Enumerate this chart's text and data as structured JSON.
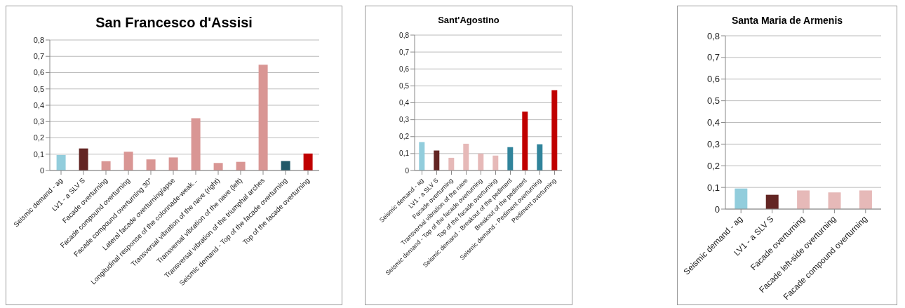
{
  "chart_data": [
    {
      "type": "bar",
      "title": "San Francesco d'Assisi",
      "categories": [
        "Seismic demand - ag",
        "LV1 - a SLV S",
        "Facade overturning",
        "Facade compound overturning",
        "Facade compound overturning 30°",
        "Lateral facade overturning/apse",
        "Longitudinal response of the colonnade-weak...",
        "Transversal vibration of the nave (right)",
        "Transversal vibration of the nave (left)",
        "Transversal vibration of the triumphal arches",
        "Seismic demand - Top of the facade overturning",
        "Top of the facade overturning"
      ],
      "values": [
        0.095,
        0.135,
        0.057,
        0.115,
        0.068,
        0.08,
        0.32,
        0.046,
        0.053,
        0.648,
        0.058,
        0.104
      ],
      "colors": [
        "#92cddc",
        "#632523",
        "#d99694",
        "#d99694",
        "#d99694",
        "#d99694",
        "#d99694",
        "#d99694",
        "#d99694",
        "#d99694",
        "#215968",
        "#c00000"
      ],
      "ylim": [
        0,
        0.8
      ],
      "yticks": [
        {
          "value": 0,
          "label": "0"
        },
        {
          "value": 0.1,
          "label": "0,1"
        },
        {
          "value": 0.2,
          "label": "0,2"
        },
        {
          "value": 0.3,
          "label": "0,3"
        },
        {
          "value": 0.4,
          "label": "0,4"
        },
        {
          "value": 0.5,
          "label": "0,5"
        },
        {
          "value": 0.6,
          "label": "0,6"
        },
        {
          "value": 0.7,
          "label": "0,7"
        },
        {
          "value": 0.8,
          "label": "0,8"
        }
      ],
      "grid": "y",
      "legend": false
    },
    {
      "type": "bar",
      "title": "Sant'Agostino",
      "categories": [
        "Seismic demand - ag",
        "LV1 - a SLV S",
        "Facade overturning",
        "Transversal vibration of the nave",
        "Seismic demand - Top of the facade overturning",
        "Top of the facade overturning",
        "Seismic demand - Breakout of the pediment",
        "Breakout of the pediment",
        "Seismic demand - Pediment overturning",
        "Pediment overturning"
      ],
      "values": [
        0.168,
        0.118,
        0.075,
        0.158,
        0.1,
        0.088,
        0.138,
        0.348,
        0.155,
        0.475
      ],
      "colors": [
        "#92cddc",
        "#632523",
        "#e6b9b8",
        "#e6b9b8",
        "#e6b9b8",
        "#e6b9b8",
        "#31849b",
        "#c00000",
        "#31849b",
        "#c00000"
      ],
      "ylim": [
        0,
        0.8
      ],
      "yticks": [
        {
          "value": 0,
          "label": "0"
        },
        {
          "value": 0.1,
          "label": "0,1"
        },
        {
          "value": 0.2,
          "label": "0,2"
        },
        {
          "value": 0.3,
          "label": "0,3"
        },
        {
          "value": 0.4,
          "label": "0,4"
        },
        {
          "value": 0.5,
          "label": "0,5"
        },
        {
          "value": 0.6,
          "label": "0,6"
        },
        {
          "value": 0.7,
          "label": "0,7"
        },
        {
          "value": 0.8,
          "label": "0,8"
        }
      ],
      "grid": "y",
      "legend": false
    },
    {
      "type": "bar",
      "title": "Santa Maria de Armenis",
      "categories": [
        "Seismic demand - ag",
        "LV1 - a SLV S",
        "Facade overturning",
        "Facade left-side overturning",
        "Facade compound overturning"
      ],
      "values": [
        0.095,
        0.066,
        0.086,
        0.077,
        0.086
      ],
      "colors": [
        "#92cddc",
        "#632523",
        "#e6b9b8",
        "#e6b9b8",
        "#e6b9b8"
      ],
      "ylim": [
        0,
        0.8
      ],
      "yticks": [
        {
          "value": 0,
          "label": "0"
        },
        {
          "value": 0.1,
          "label": "0,1"
        },
        {
          "value": 0.2,
          "label": "0,2"
        },
        {
          "value": 0.3,
          "label": "0,3"
        },
        {
          "value": 0.4,
          "label": "0,4"
        },
        {
          "value": 0.5,
          "label": "0,5"
        },
        {
          "value": 0.6,
          "label": "0,6"
        },
        {
          "value": 0.7,
          "label": "0,7"
        },
        {
          "value": 0.8,
          "label": "0,8"
        }
      ],
      "grid": "y",
      "legend": false
    }
  ]
}
